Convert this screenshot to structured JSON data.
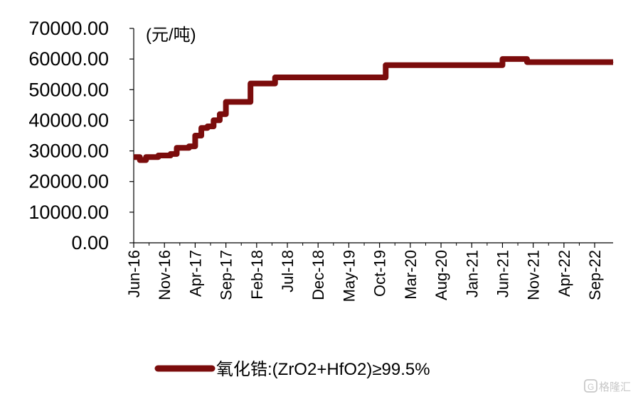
{
  "chart_data": {
    "type": "line",
    "unit_label": "(元/吨)",
    "y_ticks": [
      "70000.00",
      "60000.00",
      "50000.00",
      "40000.00",
      "30000.00",
      "20000.00",
      "10000.00",
      "0.00"
    ],
    "ylim": [
      0,
      70000
    ],
    "x_ticks": [
      "Jun-16",
      "Nov-16",
      "Apr-17",
      "Sep-17",
      "Feb-18",
      "Jul-18",
      "Dec-18",
      "May-19",
      "Oct-19",
      "Mar-20",
      "Aug-20",
      "Jan-21",
      "Jun-21",
      "Nov-21",
      "Apr-22",
      "Sep-22"
    ],
    "xlim": [
      "2016-06",
      "2022-12"
    ],
    "grid": false,
    "legend_position": "bottom",
    "series": [
      {
        "name": "氧化锆:(ZrO2+HfO2)≥99.5%",
        "color": "#7b0c0c",
        "points": [
          [
            "2016-06",
            28000
          ],
          [
            "2016-07",
            27000
          ],
          [
            "2016-08",
            28000
          ],
          [
            "2016-09",
            28000
          ],
          [
            "2016-10",
            28500
          ],
          [
            "2016-11",
            28500
          ],
          [
            "2016-12",
            29000
          ],
          [
            "2017-01",
            31000
          ],
          [
            "2017-02",
            31000
          ],
          [
            "2017-03",
            31500
          ],
          [
            "2017-04",
            35000
          ],
          [
            "2017-05",
            37500
          ],
          [
            "2017-06",
            38000
          ],
          [
            "2017-07",
            40000
          ],
          [
            "2017-08",
            42000
          ],
          [
            "2017-09",
            46000
          ],
          [
            "2017-10",
            46000
          ],
          [
            "2017-11",
            46000
          ],
          [
            "2017-12",
            46000
          ],
          [
            "2018-01",
            52000
          ],
          [
            "2018-02",
            52000
          ],
          [
            "2018-03",
            52000
          ],
          [
            "2018-04",
            52000
          ],
          [
            "2018-05",
            54000
          ],
          [
            "2018-06",
            54000
          ],
          [
            "2019-10",
            54000
          ],
          [
            "2019-11",
            58000
          ],
          [
            "2019-12",
            58000
          ],
          [
            "2021-05",
            58000
          ],
          [
            "2021-06",
            60000
          ],
          [
            "2021-09",
            60000
          ],
          [
            "2021-10",
            59000
          ],
          [
            "2022-12",
            59000
          ]
        ]
      }
    ]
  },
  "watermark": {
    "text": "格隆汇",
    "icon": "g-logo-icon"
  }
}
